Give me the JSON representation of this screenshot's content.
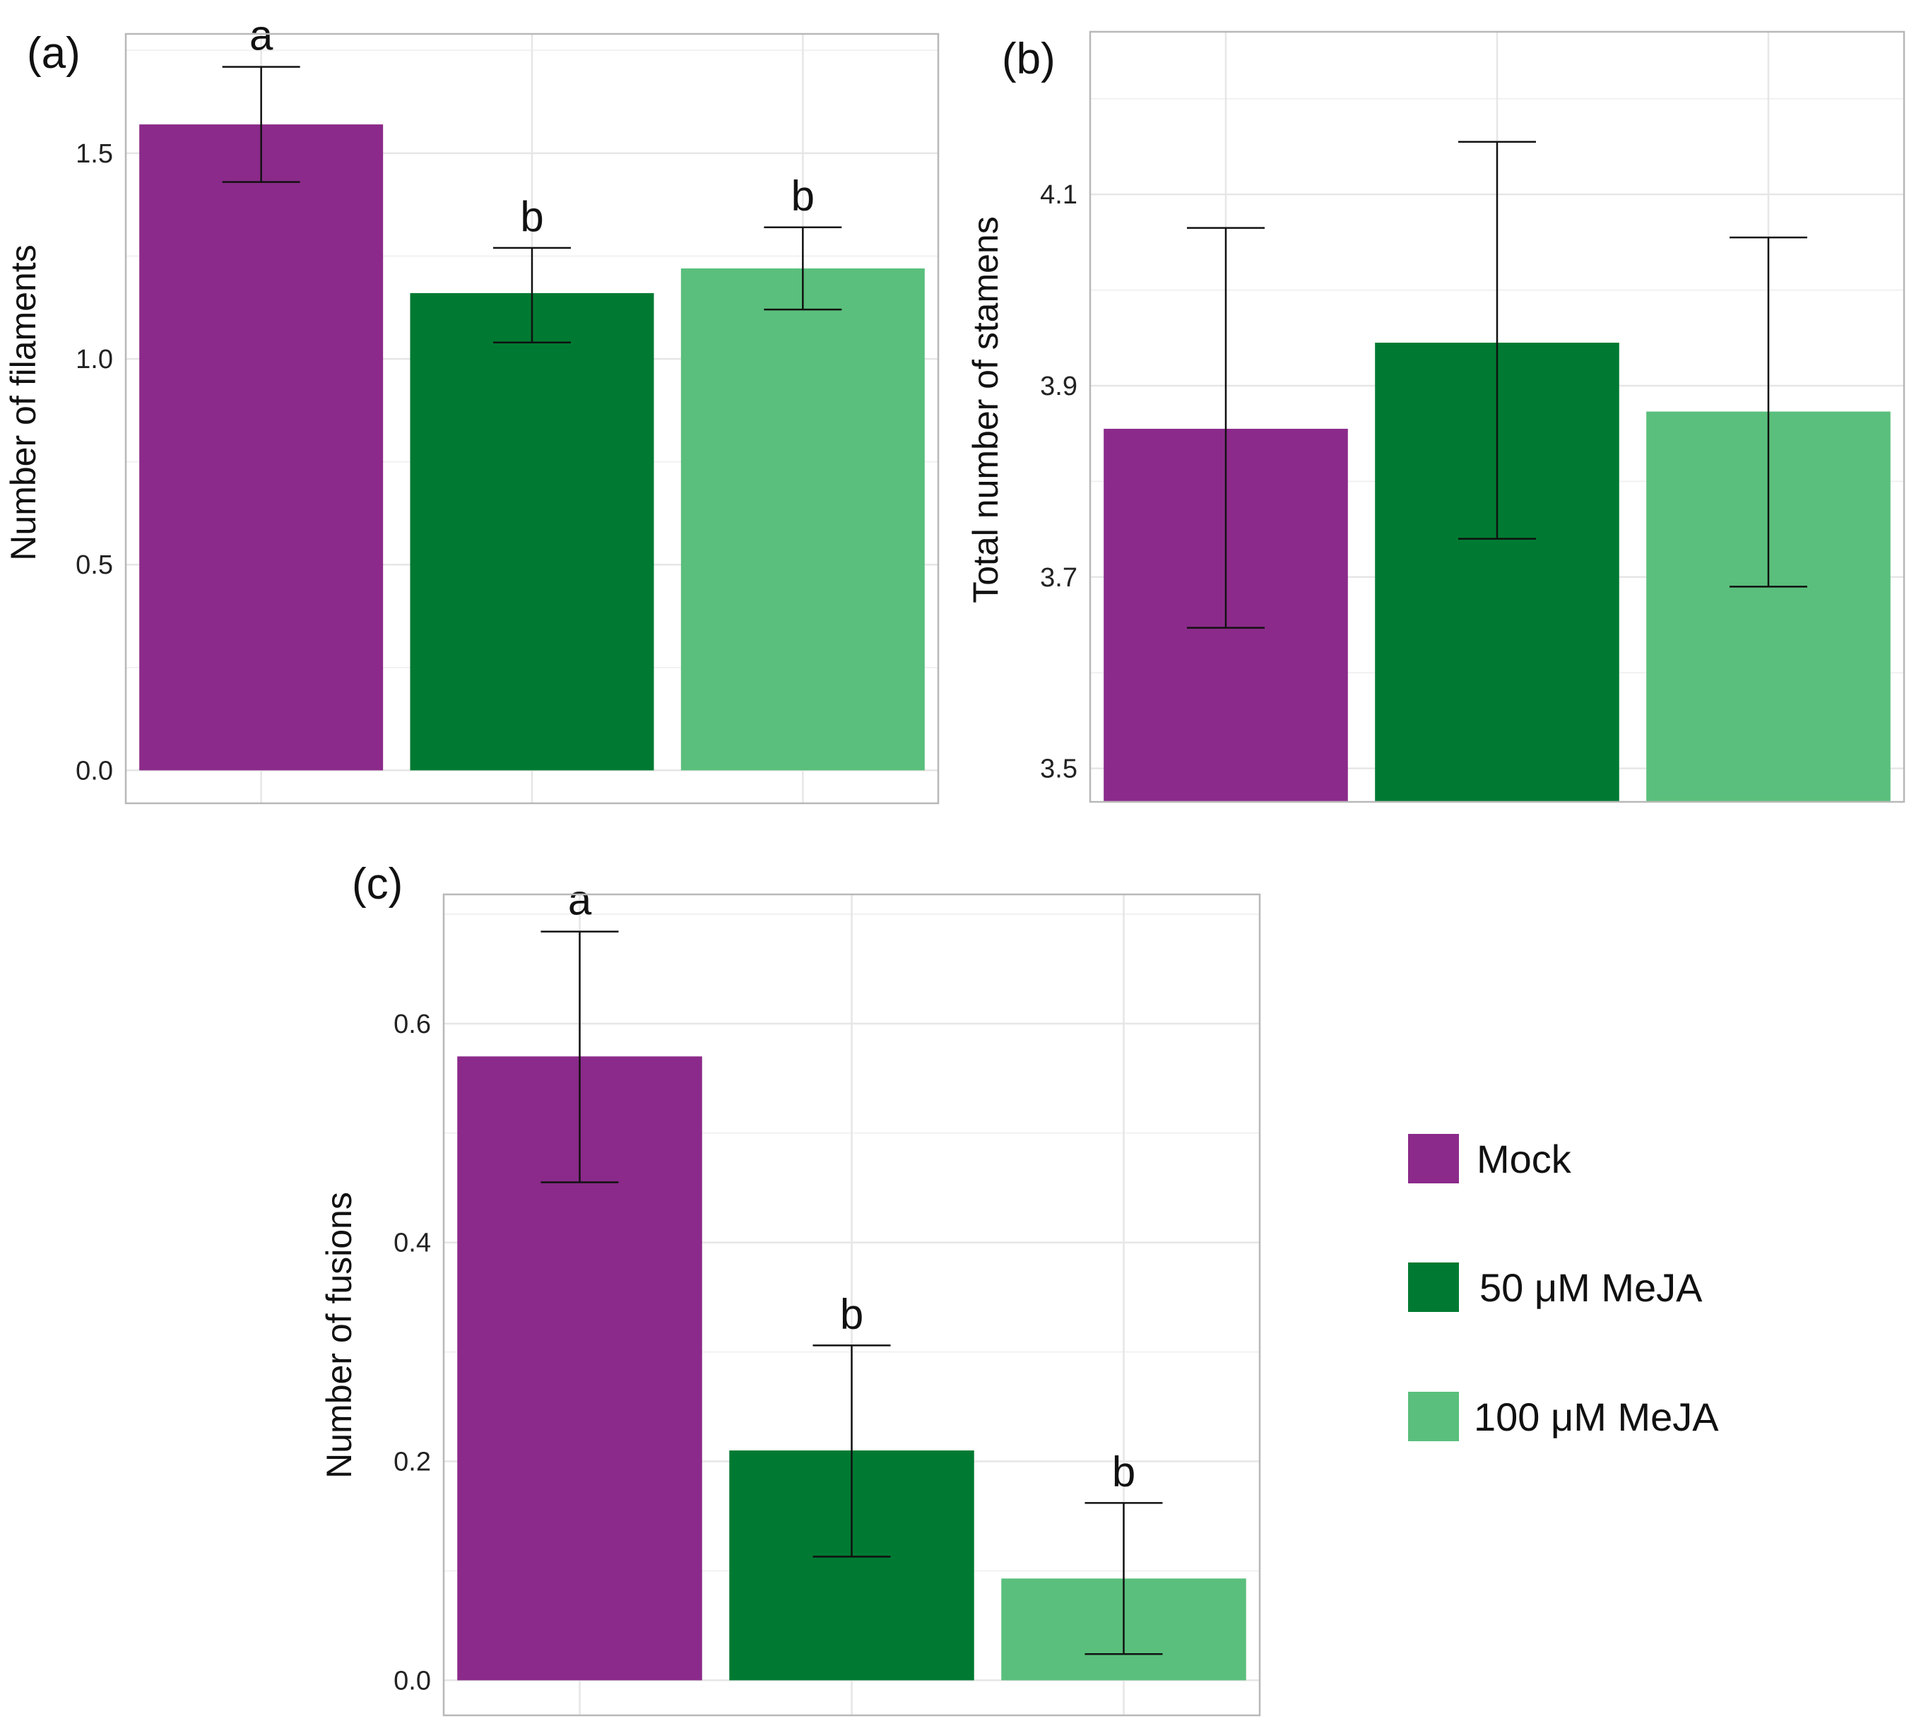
{
  "colors": {
    "mock": "#8b2a8a",
    "mejA50": "#007a32",
    "mejA100": "#5abf7c",
    "grid": "#e6e6e6",
    "frame": "#b8b8b8",
    "errorbar": "#111111"
  },
  "legend": {
    "items": [
      {
        "label": "Mock",
        "color": "#8b2a8a"
      },
      {
        "label": "50 μM MeJA",
        "color": "#007a32"
      },
      {
        "label": "100 μM MeJA",
        "color": "#5abf7c"
      }
    ]
  },
  "chart_data": [
    {
      "panel": "(a)",
      "type": "bar",
      "ylabel": "Number of filaments",
      "categories": [
        "Mock",
        "50 μM MeJA",
        "100 μM MeJA"
      ],
      "values": [
        1.57,
        1.16,
        1.22
      ],
      "error_low": [
        1.43,
        1.04,
        1.12
      ],
      "error_high": [
        1.71,
        1.27,
        1.32
      ],
      "significance": [
        "a",
        "b",
        "b"
      ],
      "ylim": [
        -0.08,
        1.79
      ],
      "yticks": [
        0.0,
        0.5,
        1.0,
        1.5
      ],
      "ytick_labels": [
        "0.0",
        "0.5",
        "1.0",
        "1.5"
      ],
      "grid": true
    },
    {
      "panel": "(b)",
      "type": "bar",
      "ylabel": "Total number of stamens",
      "categories": [
        "Mock",
        "50 μM MeJA",
        "100 μM MeJA"
      ],
      "values": [
        3.855,
        3.945,
        3.873
      ],
      "error_low": [
        3.647,
        3.74,
        3.69
      ],
      "error_high": [
        4.065,
        4.155,
        4.055
      ],
      "significance": [
        "",
        "",
        ""
      ],
      "ylim": [
        3.465,
        4.27
      ],
      "yticks": [
        3.5,
        3.7,
        3.9,
        4.1
      ],
      "ytick_labels": [
        "3.5",
        "3.7",
        "3.9",
        "4.1"
      ],
      "grid": true
    },
    {
      "panel": "(c)",
      "type": "bar",
      "ylabel": "Number of fusions",
      "categories": [
        "Mock",
        "50 μM MeJA",
        "100 μM MeJA"
      ],
      "values": [
        0.57,
        0.21,
        0.093
      ],
      "error_low": [
        0.455,
        0.113,
        0.024
      ],
      "error_high": [
        0.684,
        0.306,
        0.162
      ],
      "significance": [
        "a",
        "b",
        "b"
      ],
      "ylim": [
        -0.032,
        0.718
      ],
      "yticks": [
        0.0,
        0.2,
        0.4,
        0.6
      ],
      "ytick_labels": [
        "0.0",
        "0.2",
        "0.4",
        "0.6"
      ],
      "grid": true
    }
  ]
}
